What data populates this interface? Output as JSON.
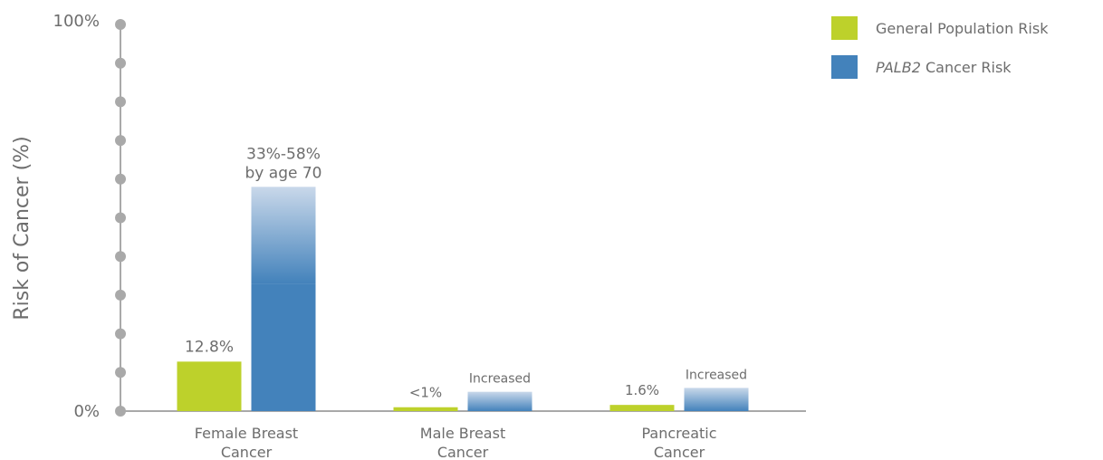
{
  "chart_data": {
    "type": "bar",
    "ylabel": "Risk of Cancer (%)",
    "ylim": [
      0,
      100
    ],
    "y_tick_labels": [
      "0%",
      "100%"
    ],
    "categories": [
      {
        "line1": "Female Breast",
        "line2": "Cancer"
      },
      {
        "line1": "Male Breast",
        "line2": "Cancer"
      },
      {
        "line1": "Pancreatic",
        "line2": "Cancer"
      }
    ],
    "series": [
      {
        "name": "General Population Risk",
        "color": "#bdd12b",
        "values": [
          12.8,
          1,
          1.6
        ],
        "data_labels": [
          "12.8%",
          "<1%",
          "1.6%"
        ]
      },
      {
        "name_italic": "PALB2",
        "name_rest": " Cancer Risk",
        "color": "#4382bb",
        "values_low": [
          33,
          0,
          0
        ],
        "values_high": [
          58,
          5,
          6
        ],
        "data_labels": [
          [
            "33%-58%",
            "by age 70"
          ],
          [
            "Increased"
          ],
          [
            "Increased"
          ]
        ]
      }
    ],
    "legend_position": "top-right",
    "grid": false
  }
}
